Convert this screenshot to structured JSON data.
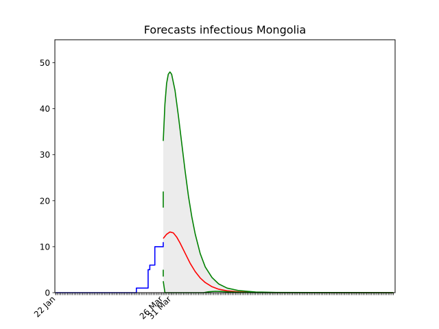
{
  "chart_data": {
    "type": "line",
    "title": "Forecasts infectious Mongolia",
    "xlabel": "",
    "ylabel": "",
    "x_axis": {
      "type": "date",
      "start": "2020-01-22",
      "end": "2020-08-10",
      "labeled_ticks": [
        {
          "date": "2020-01-22",
          "label": "22 Jan"
        },
        {
          "date": "2020-03-26",
          "label": "26 Mar"
        },
        {
          "date": "2020-03-31",
          "label": "31 Mar"
        }
      ],
      "minor_ticks_daily": true
    },
    "ylim": [
      0,
      55
    ],
    "yticks": [
      0,
      10,
      20,
      30,
      40,
      50
    ],
    "grid": false,
    "legend": "none",
    "series": [
      {
        "role": "observed",
        "color": "#0000ff",
        "style": "step",
        "points": [
          [
            "2020-01-22",
            0
          ],
          [
            "2020-03-09",
            0
          ],
          [
            "2020-03-10",
            1
          ],
          [
            "2020-03-16",
            1
          ],
          [
            "2020-03-17",
            5
          ],
          [
            "2020-03-18",
            6
          ],
          [
            "2020-03-20",
            6
          ],
          [
            "2020-03-21",
            10
          ],
          [
            "2020-03-25",
            10
          ],
          [
            "2020-03-26",
            11
          ]
        ]
      },
      {
        "role": "forecast-mean",
        "color": "#ff0000",
        "points": [
          [
            "2020-03-26",
            11.8
          ],
          [
            "2020-03-28",
            12.7
          ],
          [
            "2020-03-30",
            13.2
          ],
          [
            "2020-04-01",
            13.0
          ],
          [
            "2020-04-03",
            12.1
          ],
          [
            "2020-04-05",
            10.8
          ],
          [
            "2020-04-08",
            8.6
          ],
          [
            "2020-04-11",
            6.4
          ],
          [
            "2020-04-14",
            4.6
          ],
          [
            "2020-04-17",
            3.2
          ],
          [
            "2020-04-20",
            2.2
          ],
          [
            "2020-04-24",
            1.3
          ],
          [
            "2020-04-28",
            0.75
          ],
          [
            "2020-05-03",
            0.4
          ],
          [
            "2020-05-10",
            0.18
          ],
          [
            "2020-05-20",
            0.06
          ],
          [
            "2020-06-01",
            0.02
          ],
          [
            "2020-08-10",
            0
          ]
        ]
      },
      {
        "role": "forecast-upper",
        "color": "#008000",
        "points": [
          [
            "2020-03-26",
            18.5
          ],
          [
            "2020-03-26",
            33
          ],
          [
            "2020-03-27",
            41
          ],
          [
            "2020-03-28",
            45.5
          ],
          [
            "2020-03-29",
            47.5
          ],
          [
            "2020-03-30",
            48.0
          ],
          [
            "2020-03-31",
            47.5
          ],
          [
            "2020-04-02",
            44.0
          ],
          [
            "2020-04-04",
            38.5
          ],
          [
            "2020-04-06",
            32.5
          ],
          [
            "2020-04-08",
            26.5
          ],
          [
            "2020-04-10",
            21.0
          ],
          [
            "2020-04-12",
            16.5
          ],
          [
            "2020-04-14",
            12.8
          ],
          [
            "2020-04-17",
            8.5
          ],
          [
            "2020-04-20",
            5.6
          ],
          [
            "2020-04-24",
            3.3
          ],
          [
            "2020-04-28",
            1.9
          ],
          [
            "2020-05-03",
            1.0
          ],
          [
            "2020-05-10",
            0.45
          ],
          [
            "2020-05-20",
            0.15
          ],
          [
            "2020-06-01",
            0.05
          ],
          [
            "2020-08-10",
            0
          ]
        ]
      },
      {
        "role": "forecast-lower",
        "color": "#008000",
        "points": [
          [
            "2020-03-26",
            5
          ],
          [
            "2020-03-26",
            2.5
          ],
          [
            "2020-03-27",
            0
          ],
          [
            "2020-04-19",
            0
          ],
          [
            "2020-04-22",
            0.2
          ],
          [
            "2020-04-26",
            0.3
          ],
          [
            "2020-04-30",
            0.25
          ],
          [
            "2020-05-05",
            0.15
          ],
          [
            "2020-05-12",
            0.06
          ],
          [
            "2020-05-25",
            0.01
          ],
          [
            "2020-08-10",
            0
          ]
        ]
      }
    ],
    "band": {
      "between": [
        "forecast-lower",
        "forecast-upper"
      ],
      "color": "#ececec"
    }
  }
}
